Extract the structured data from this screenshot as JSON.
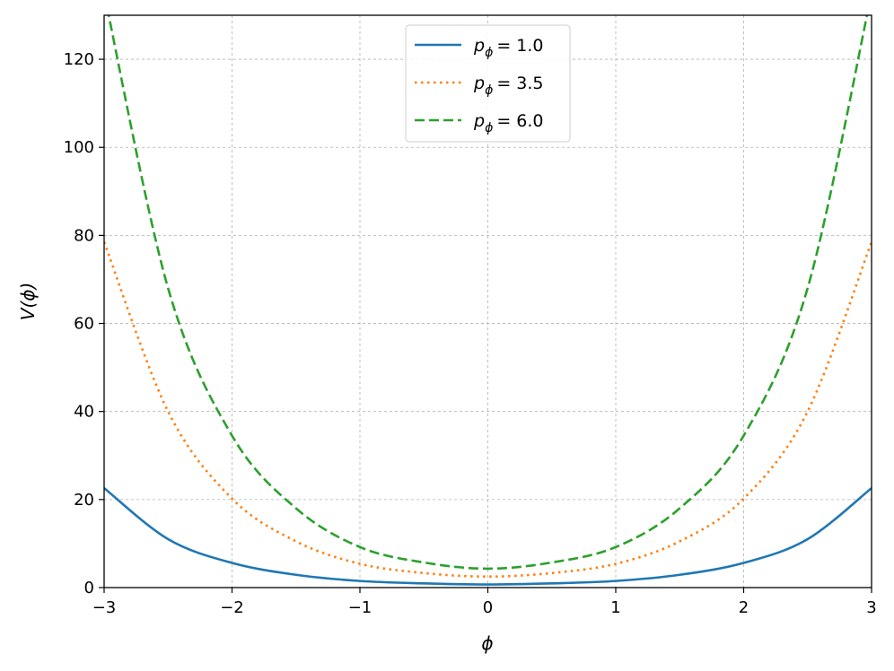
{
  "chart_data": {
    "type": "line",
    "title": "",
    "xlabel": "ϕ",
    "ylabel": "V(ϕ)",
    "xlim": [
      -3,
      3
    ],
    "ylim": [
      0,
      130
    ],
    "x_ticks": [
      -3,
      -2,
      -1,
      0,
      1,
      2,
      3
    ],
    "x_tick_labels": [
      "−3",
      "−2",
      "−1",
      "0",
      "1",
      "2",
      "3"
    ],
    "y_ticks": [
      0,
      20,
      40,
      60,
      80,
      100,
      120
    ],
    "y_tick_labels": [
      "0",
      "20",
      "40",
      "60",
      "80",
      "100",
      "120"
    ],
    "grid": true,
    "legend_position": "top-center",
    "x": [
      -3,
      -2.5,
      -2,
      -1.5,
      -1,
      -0.5,
      0,
      0.5,
      1,
      1.5,
      2,
      2.5,
      3
    ],
    "series": [
      {
        "legend_symbol": "p",
        "legend_subscript": "ϕ",
        "legend_value": "= 1.0",
        "color": "#1f77b4",
        "dash": "solid",
        "values": [
          22.6,
          11.0,
          5.6,
          2.9,
          1.5,
          0.95,
          0.7,
          0.95,
          1.5,
          2.9,
          5.6,
          11.0,
          22.6
        ]
      },
      {
        "legend_symbol": "p",
        "legend_subscript": "ϕ",
        "legend_value": "= 3.5",
        "color": "#ff7f0e",
        "dash": "dotted",
        "values": [
          78.5,
          40.0,
          20.2,
          10.5,
          5.4,
          3.3,
          2.5,
          3.3,
          5.4,
          10.5,
          20.2,
          40.0,
          78.5
        ]
      },
      {
        "legend_symbol": "p",
        "legend_subscript": "ϕ",
        "legend_value": "= 6.0",
        "color": "#2ca02c",
        "dash": "dashed",
        "values": [
          135.0,
          68.0,
          34.5,
          18.0,
          9.2,
          5.7,
          4.3,
          5.7,
          9.2,
          18.0,
          34.5,
          68.0,
          135.0
        ]
      }
    ]
  }
}
